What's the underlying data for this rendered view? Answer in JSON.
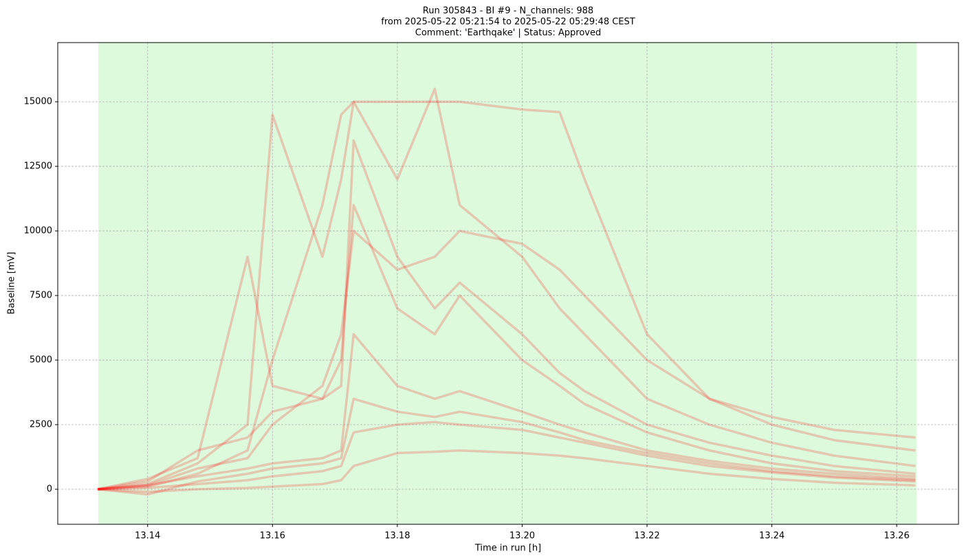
{
  "chart_data": {
    "type": "line",
    "title": [
      "Run 305843  -  BI #9  -  N_channels: 988",
      "from  2025-05-22 05:21:54  to  2025-05-22 05:29:48 CEST",
      "Comment: 'Earthqake' | Status: Approved"
    ],
    "x_label": "Time in run [h]",
    "y_label": "Baseline [mV]",
    "xlim": [
      13.1256,
      13.2699
    ],
    "ylim": [
      -1356,
      17290
    ],
    "xticks": [
      13.14,
      13.16,
      13.18,
      {
        "value": 13.2,
        "label": "13.20"
      },
      13.22,
      13.24,
      13.26
    ],
    "yticks": [
      0,
      2500,
      5000,
      7500,
      10000,
      12500,
      15000
    ],
    "grid": true,
    "span": [
      13.1321,
      13.2632
    ],
    "span_color": "#90ee90",
    "alpha": 0.2,
    "x": [
      13.132,
      13.14,
      13.148,
      13.156,
      13.16,
      13.168,
      13.171,
      13.173,
      13.18,
      13.186,
      13.19,
      13.2,
      13.206,
      13.21,
      13.22,
      13.23,
      13.24,
      13.25,
      13.263
    ],
    "series": [
      {
        "color": "#ff0000",
        "values": [
          0,
          -100,
          0,
          50,
          100,
          200,
          350,
          900,
          1400,
          1450,
          1500,
          1400,
          1300,
          1200,
          900,
          600,
          400,
          250,
          150
        ]
      },
      {
        "color": "#ff0000",
        "values": [
          0,
          50,
          200,
          350,
          500,
          700,
          900,
          2200,
          2500,
          2600,
          2500,
          2300,
          2000,
          1800,
          1300,
          900,
          650,
          450,
          300
        ]
      },
      {
        "color": "#ff0000",
        "values": [
          0,
          150,
          500,
          800,
          1000,
          1200,
          1500,
          6000,
          4000,
          3500,
          3800,
          3000,
          2500,
          2200,
          1500,
          1100,
          800,
          600,
          400
        ]
      },
      {
        "color": "#ff0000",
        "values": [
          0,
          300,
          1500,
          2000,
          3000,
          3500,
          4000,
          13500,
          9000,
          7000,
          8000,
          6000,
          4500,
          3800,
          2500,
          1800,
          1300,
          900,
          600
        ]
      },
      {
        "color": "#ff0000",
        "values": [
          0,
          200,
          1000,
          2500,
          14500,
          9000,
          12000,
          15000,
          12000,
          15500,
          11000,
          9000,
          7000,
          6000,
          3500,
          2500,
          1800,
          1300,
          900
        ]
      },
      {
        "color": "#ff0000",
        "values": [
          0,
          100,
          600,
          1500,
          5000,
          11000,
          14500,
          15000,
          15000,
          15000,
          15000,
          14700,
          14600,
          12000,
          6000,
          3500,
          2500,
          1900,
          1500
        ]
      },
      {
        "color": "#ff0000",
        "values": [
          0,
          150,
          800,
          1200,
          2500,
          4000,
          6000,
          10000,
          8500,
          9000,
          10000,
          9500,
          8500,
          7500,
          5000,
          3500,
          2800,
          2300,
          2000
        ]
      },
      {
        "color": "#ff0000",
        "values": [
          0,
          -200,
          300,
          600,
          800,
          1000,
          1200,
          3500,
          3000,
          2800,
          3000,
          2600,
          2200,
          1900,
          1400,
          1000,
          700,
          500,
          350
        ]
      },
      {
        "color": "#ff0000",
        "values": [
          0,
          400,
          1200,
          9000,
          4000,
          3500,
          5000,
          11000,
          7000,
          6000,
          7500,
          5000,
          4000,
          3300,
          2200,
          1500,
          1000,
          700,
          500
        ]
      }
    ]
  }
}
